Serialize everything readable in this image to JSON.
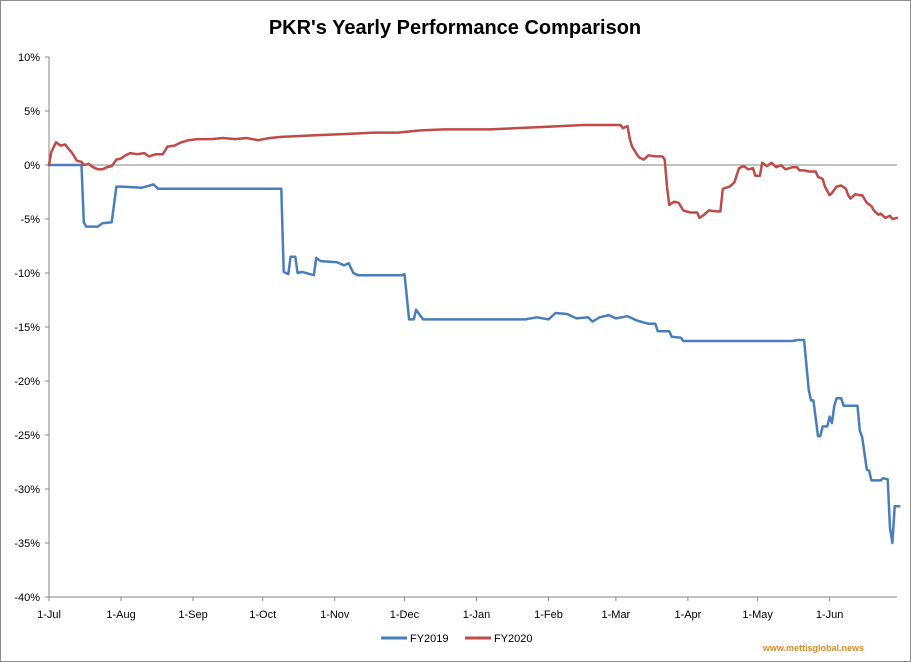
{
  "chart_data": {
    "type": "line",
    "title": "PKR's Yearly Performance Comparison",
    "xlabel": "",
    "ylabel": "",
    "x_ticks": [
      "1-Jul",
      "1-Aug",
      "1-Sep",
      "1-Oct",
      "1-Nov",
      "1-Dec",
      "1-Jan",
      "1-Feb",
      "1-Mar",
      "1-Apr",
      "1-May",
      "1-Jun"
    ],
    "x_tick_days": [
      0,
      31,
      62,
      92,
      123,
      153,
      184,
      215,
      244,
      275,
      305,
      336
    ],
    "x_range_days": [
      0,
      365
    ],
    "y_ticks": [
      "10%",
      "5%",
      "0%",
      "-5%",
      "-10%",
      "-15%",
      "-20%",
      "-25%",
      "-30%",
      "-35%",
      "-40%"
    ],
    "ylim": [
      -40,
      10
    ],
    "y_unit": "%",
    "reference_line": 0,
    "gridlines": false,
    "legend_position": "bottom",
    "series": [
      {
        "name": "FY2019",
        "color": "#4a7ebb",
        "points": [
          [
            0,
            0
          ],
          [
            14,
            0
          ],
          [
            15,
            -5.3
          ],
          [
            16,
            -5.7
          ],
          [
            21,
            -5.7
          ],
          [
            23,
            -5.4
          ],
          [
            27,
            -5.3
          ],
          [
            29,
            -2.0
          ],
          [
            31,
            -2.0
          ],
          [
            40,
            -2.1
          ],
          [
            45,
            -1.8
          ],
          [
            47,
            -2.2
          ],
          [
            100,
            -2.2
          ],
          [
            101,
            -9.9
          ],
          [
            103,
            -10.1
          ],
          [
            104,
            -8.5
          ],
          [
            106,
            -8.5
          ],
          [
            107,
            -10.0
          ],
          [
            109,
            -9.9
          ],
          [
            114,
            -10.2
          ],
          [
            115,
            -8.6
          ],
          [
            117,
            -8.9
          ],
          [
            124,
            -9.0
          ],
          [
            127,
            -9.3
          ],
          [
            129,
            -9.1
          ],
          [
            131,
            -10.0
          ],
          [
            133,
            -10.2
          ],
          [
            152,
            -10.2
          ],
          [
            153,
            -10.1
          ],
          [
            155,
            -14.3
          ],
          [
            157,
            -14.3
          ],
          [
            158,
            -13.4
          ],
          [
            159,
            -13.7
          ],
          [
            161,
            -14.3
          ],
          [
            205,
            -14.3
          ],
          [
            210,
            -14.1
          ],
          [
            215,
            -14.3
          ],
          [
            218,
            -13.7
          ],
          [
            223,
            -13.8
          ],
          [
            227,
            -14.2
          ],
          [
            232,
            -14.1
          ],
          [
            234,
            -14.5
          ],
          [
            237,
            -14.1
          ],
          [
            241,
            -13.9
          ],
          [
            244,
            -14.2
          ],
          [
            249,
            -14.0
          ],
          [
            253,
            -14.4
          ],
          [
            258,
            -14.7
          ],
          [
            261,
            -14.7
          ],
          [
            262,
            -15.4
          ],
          [
            267,
            -15.4
          ],
          [
            268,
            -15.9
          ],
          [
            272,
            -16.0
          ],
          [
            273,
            -16.3
          ],
          [
            320,
            -16.3
          ],
          [
            322,
            -16.2
          ],
          [
            325,
            -16.2
          ],
          [
            327,
            -20.8
          ],
          [
            328,
            -21.8
          ],
          [
            329,
            -21.8
          ],
          [
            331,
            -25.1
          ],
          [
            332,
            -25.1
          ],
          [
            333,
            -24.2
          ],
          [
            335,
            -24.2
          ],
          [
            336,
            -23.3
          ],
          [
            337,
            -23.9
          ],
          [
            338,
            -22.3
          ],
          [
            339,
            -21.6
          ],
          [
            341,
            -21.6
          ],
          [
            342,
            -22.3
          ],
          [
            348,
            -22.3
          ],
          [
            349,
            -24.6
          ],
          [
            350,
            -25.2
          ],
          [
            352,
            -28.2
          ],
          [
            353,
            -28.3
          ],
          [
            354,
            -29.2
          ],
          [
            358,
            -29.2
          ],
          [
            359,
            -29.0
          ],
          [
            361,
            -29.1
          ],
          [
            362,
            -33.6
          ],
          [
            363,
            -35.0
          ],
          [
            364,
            -31.6
          ],
          [
            366,
            -31.6
          ]
        ]
      },
      {
        "name": "FY2020",
        "color": "#be4b48",
        "points": [
          [
            0,
            0
          ],
          [
            1,
            1.2
          ],
          [
            3,
            2.1
          ],
          [
            5,
            1.8
          ],
          [
            7,
            1.9
          ],
          [
            8,
            1.6
          ],
          [
            10,
            1.1
          ],
          [
            12,
            0.4
          ],
          [
            14,
            0.3
          ],
          [
            15,
            0.0
          ],
          [
            17,
            0.1
          ],
          [
            19,
            -0.2
          ],
          [
            21,
            -0.4
          ],
          [
            23,
            -0.4
          ],
          [
            25,
            -0.2
          ],
          [
            27,
            -0.1
          ],
          [
            29,
            0.5
          ],
          [
            31,
            0.6
          ],
          [
            33,
            0.9
          ],
          [
            35,
            1.1
          ],
          [
            38,
            1.0
          ],
          [
            41,
            1.1
          ],
          [
            43,
            0.8
          ],
          [
            46,
            1.0
          ],
          [
            49,
            1.0
          ],
          [
            51,
            1.7
          ],
          [
            54,
            1.8
          ],
          [
            57,
            2.1
          ],
          [
            60,
            2.3
          ],
          [
            64,
            2.4
          ],
          [
            70,
            2.4
          ],
          [
            75,
            2.5
          ],
          [
            80,
            2.4
          ],
          [
            85,
            2.5
          ],
          [
            90,
            2.3
          ],
          [
            95,
            2.5
          ],
          [
            100,
            2.6
          ],
          [
            110,
            2.7
          ],
          [
            120,
            2.8
          ],
          [
            130,
            2.9
          ],
          [
            140,
            3.0
          ],
          [
            150,
            3.0
          ],
          [
            160,
            3.2
          ],
          [
            170,
            3.3
          ],
          [
            180,
            3.3
          ],
          [
            190,
            3.3
          ],
          [
            200,
            3.4
          ],
          [
            210,
            3.5
          ],
          [
            220,
            3.6
          ],
          [
            230,
            3.7
          ],
          [
            240,
            3.7
          ],
          [
            246,
            3.7
          ],
          [
            247,
            3.4
          ],
          [
            249,
            3.6
          ],
          [
            250,
            2.4
          ],
          [
            251,
            1.7
          ],
          [
            253,
            1.0
          ],
          [
            254,
            0.7
          ],
          [
            256,
            0.5
          ],
          [
            258,
            0.9
          ],
          [
            261,
            0.8
          ],
          [
            264,
            0.8
          ],
          [
            265,
            0.5
          ],
          [
            266,
            -2.0
          ],
          [
            267,
            -3.7
          ],
          [
            269,
            -3.4
          ],
          [
            271,
            -3.5
          ],
          [
            273,
            -4.2
          ],
          [
            276,
            -4.4
          ],
          [
            279,
            -4.4
          ],
          [
            280,
            -4.9
          ],
          [
            282,
            -4.6
          ],
          [
            284,
            -4.2
          ],
          [
            287,
            -4.3
          ],
          [
            289,
            -4.3
          ],
          [
            290,
            -2.2
          ],
          [
            293,
            -2.0
          ],
          [
            295,
            -1.6
          ],
          [
            297,
            -0.3
          ],
          [
            299,
            -0.1
          ],
          [
            301,
            -0.4
          ],
          [
            303,
            -0.3
          ],
          [
            304,
            -1.0
          ],
          [
            306,
            -1.0
          ],
          [
            307,
            0.2
          ],
          [
            309,
            -0.1
          ],
          [
            311,
            0.2
          ],
          [
            313,
            -0.2
          ],
          [
            315,
            0.0
          ],
          [
            317,
            -0.4
          ],
          [
            320,
            -0.2
          ],
          [
            322,
            -0.2
          ],
          [
            323,
            -0.5
          ],
          [
            325,
            -0.5
          ],
          [
            327,
            -0.6
          ],
          [
            330,
            -0.6
          ],
          [
            331,
            -1.1
          ],
          [
            333,
            -1.3
          ],
          [
            334,
            -2.0
          ],
          [
            336,
            -2.8
          ],
          [
            337,
            -2.6
          ],
          [
            339,
            -2.0
          ],
          [
            341,
            -1.9
          ],
          [
            343,
            -2.2
          ],
          [
            344,
            -2.8
          ],
          [
            345,
            -3.1
          ],
          [
            347,
            -2.7
          ],
          [
            349,
            -2.8
          ],
          [
            350,
            -2.8
          ],
          [
            352,
            -3.5
          ],
          [
            354,
            -3.8
          ],
          [
            355,
            -4.2
          ],
          [
            357,
            -4.6
          ],
          [
            358,
            -4.5
          ],
          [
            360,
            -4.9
          ],
          [
            362,
            -4.7
          ],
          [
            363,
            -5.0
          ],
          [
            365,
            -4.9
          ]
        ]
      }
    ]
  },
  "watermark": "www.mettisglobal.news"
}
